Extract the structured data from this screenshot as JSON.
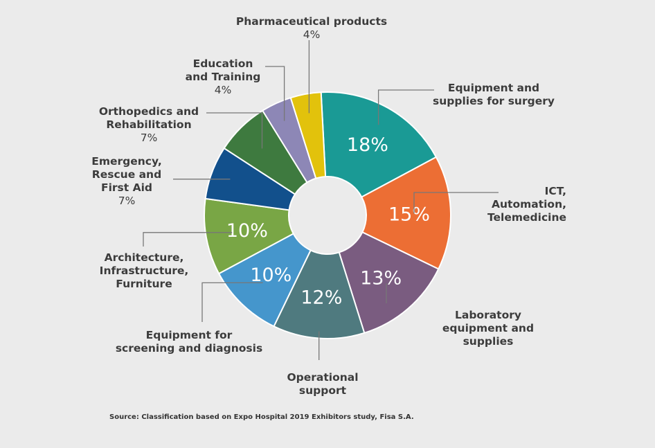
{
  "chart_data": {
    "type": "pie",
    "title": "",
    "source": "Source: Classification based on Expo Hospital 2019 Exhibitors study, Fisa S.A.",
    "slices": [
      {
        "label": [
          "Equipment and",
          "supplies for surgery"
        ],
        "value": 18,
        "value_text": "18%",
        "color": "#1a9a95"
      },
      {
        "label": [
          "ICT,",
          "Automation,",
          "Telemedicine"
        ],
        "value": 15,
        "value_text": "15%",
        "color": "#ec6e34"
      },
      {
        "label": [
          "Laboratory",
          "equipment and",
          "supplies"
        ],
        "value": 13,
        "value_text": "13%",
        "color": "#7a5c80"
      },
      {
        "label": [
          "Operational",
          "support"
        ],
        "value": 12,
        "value_text": "12%",
        "color": "#4f7a7f"
      },
      {
        "label": [
          "Equipment for",
          "screening and diagnosis"
        ],
        "value": 10,
        "value_text": "10%",
        "color": "#4596cc"
      },
      {
        "label": [
          "Architecture,",
          "Infrastructure,",
          "Furniture"
        ],
        "value": 10,
        "value_text": "10%",
        "color": "#79a645"
      },
      {
        "label": [
          "Emergency,",
          "Rescue and",
          "First Aid"
        ],
        "value": 7,
        "value_text": "7%",
        "color": "#12508c"
      },
      {
        "label": [
          "Orthopedics and",
          "Rehabilitation"
        ],
        "value": 7,
        "value_text": "7%",
        "color": "#3e7a3f"
      },
      {
        "label": [
          "Education",
          "and Training"
        ],
        "value": 4,
        "value_text": "4%",
        "color": "#8d87b6"
      },
      {
        "label": [
          "Pharmaceutical products"
        ],
        "value": 4,
        "value_text": "4%",
        "color": "#e2c20c"
      }
    ]
  }
}
